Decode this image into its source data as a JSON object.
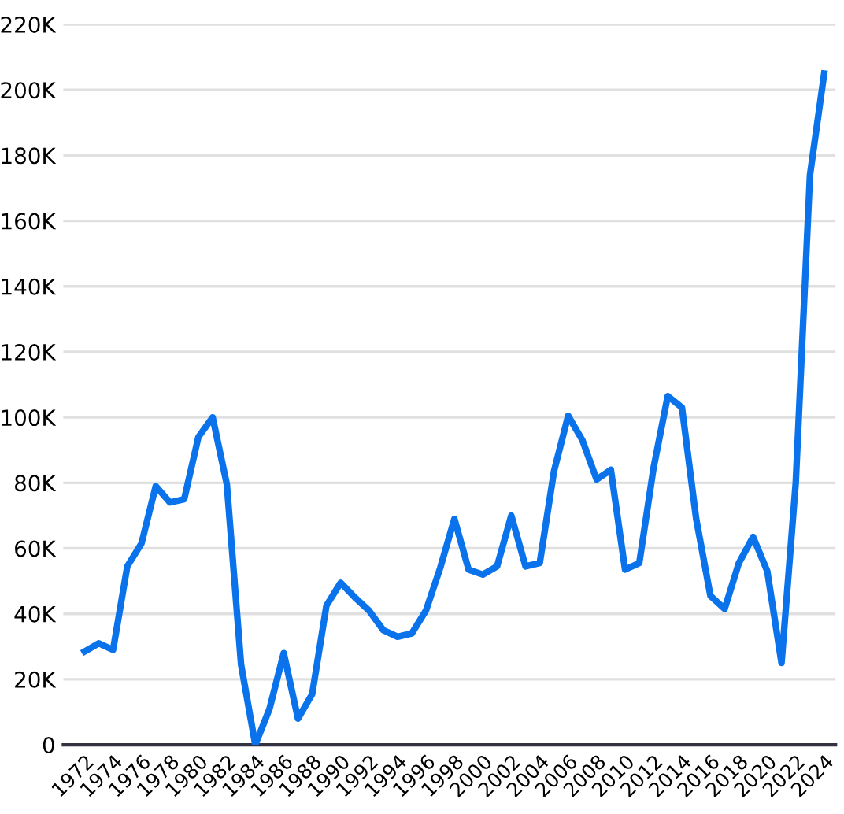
{
  "chart_data": {
    "type": "line",
    "x": [
      1972,
      1973,
      1974,
      1975,
      1976,
      1977,
      1978,
      1979,
      1980,
      1981,
      1982,
      1983,
      1984,
      1985,
      1986,
      1987,
      1988,
      1989,
      1990,
      1991,
      1992,
      1993,
      1994,
      1995,
      1996,
      1997,
      1998,
      1999,
      2000,
      2001,
      2002,
      2003,
      2004,
      2005,
      2006,
      2007,
      2008,
      2009,
      2010,
      2011,
      2012,
      2013,
      2014,
      2015,
      2016,
      2017,
      2018,
      2019,
      2020,
      2021,
      2022,
      2023,
      2024
    ],
    "series": [
      {
        "color": "#0a73eb",
        "values": [
          28500,
          31000,
          29000,
          54500,
          61500,
          79000,
          74000,
          75000,
          94000,
          100000,
          79500,
          24500,
          0,
          11000,
          28000,
          8000,
          15500,
          42500,
          49500,
          45000,
          41000,
          35000,
          33000,
          34000,
          41000,
          54000,
          69000,
          53500,
          52000,
          54500,
          70000,
          54500,
          55500,
          83500,
          100500,
          93000,
          81000,
          84000,
          53500,
          55500,
          84500,
          106500,
          103000,
          69000,
          45500,
          41500,
          55500,
          63500,
          53000,
          25000,
          80000,
          174000,
          205000
        ]
      }
    ],
    "xlim": [
      1970.5,
      2024.8
    ],
    "xticks": [
      1972,
      1974,
      1976,
      1978,
      1980,
      1982,
      1984,
      1986,
      1988,
      1990,
      1992,
      1994,
      1996,
      1998,
      2000,
      2002,
      2004,
      2006,
      2008,
      2010,
      2012,
      2014,
      2016,
      2018,
      2020,
      2022,
      2024
    ],
    "ylim": [
      0,
      220000
    ],
    "yticks": [
      {
        "value": 0,
        "label": "0"
      },
      {
        "value": 20000,
        "label": "20K"
      },
      {
        "value": 40000,
        "label": "40K"
      },
      {
        "value": 60000,
        "label": "60K"
      },
      {
        "value": 80000,
        "label": "80K"
      },
      {
        "value": 100000,
        "label": "100K"
      },
      {
        "value": 120000,
        "label": "120K"
      },
      {
        "value": 140000,
        "label": "140K"
      },
      {
        "value": 160000,
        "label": "160K"
      },
      {
        "value": 180000,
        "label": "180K"
      },
      {
        "value": 200000,
        "label": "200K"
      },
      {
        "value": 220000,
        "label": "220K"
      }
    ],
    "grid": "y",
    "legend": false,
    "marker": "none",
    "line_style": "solid"
  }
}
